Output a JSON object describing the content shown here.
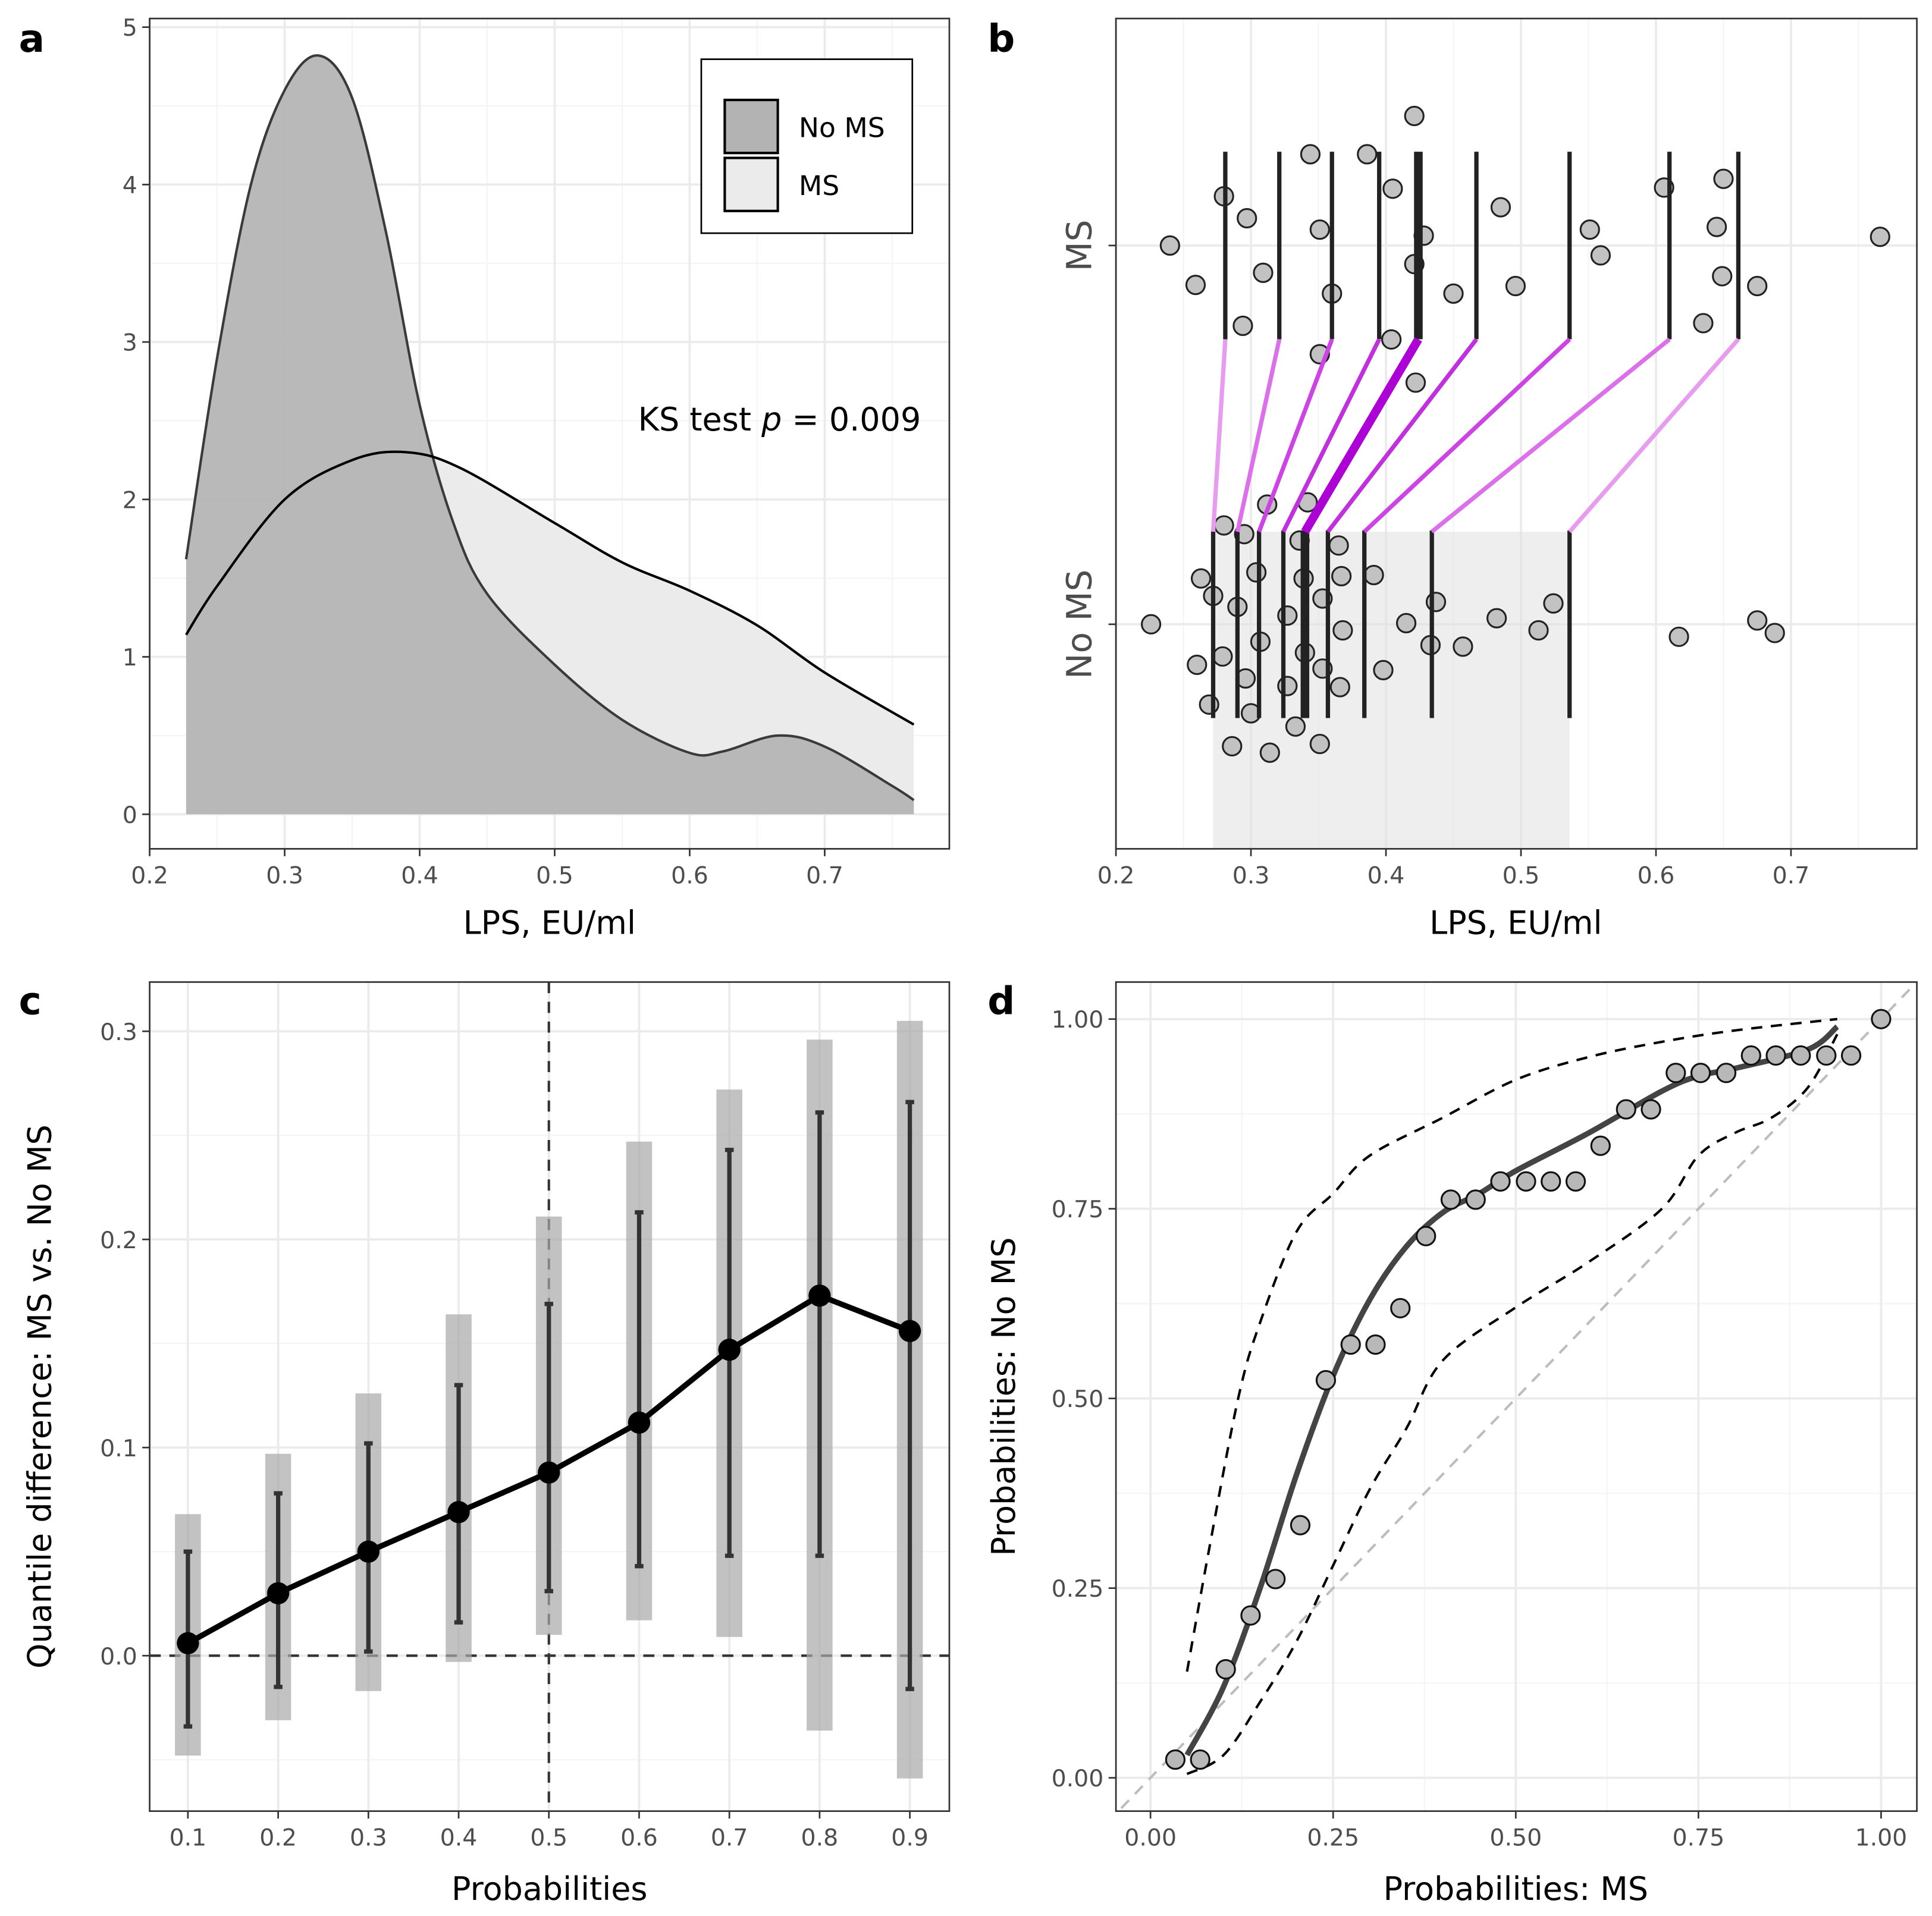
{
  "chart_data": [
    {
      "panel": "a",
      "type": "area",
      "letter": "a",
      "xlabel": "LPS, EU/ml",
      "ylabel": "",
      "xlim": [
        0.2,
        0.792
      ],
      "ylim": [
        -0.22,
        5.05
      ],
      "xticks": [
        "0.2",
        "0.3",
        "0.4",
        "0.5",
        "0.6",
        "0.7"
      ],
      "yticks": [
        "0",
        "1",
        "2",
        "3",
        "4",
        "5"
      ],
      "legend": {
        "placement": "top-right",
        "entries": [
          "No MS",
          "MS"
        ]
      },
      "annotation": {
        "prefix": "KS test ",
        "p": "p",
        "value": " = 0.009"
      },
      "series": [
        {
          "name": "MS",
          "fill": "#ebebeb",
          "line": "#000000",
          "x": [
            0.227,
            0.25,
            0.3,
            0.35,
            0.39,
            0.43,
            0.5,
            0.55,
            0.6,
            0.65,
            0.7,
            0.766
          ],
          "y": [
            1.14,
            1.45,
            2.0,
            2.25,
            2.3,
            2.2,
            1.85,
            1.6,
            1.42,
            1.2,
            0.9,
            0.57
          ]
        },
        {
          "name": "No MS",
          "fill": "#b3b3b3",
          "line": "#3a3a3a",
          "x": [
            0.227,
            0.25,
            0.275,
            0.3,
            0.325,
            0.35,
            0.375,
            0.4,
            0.425,
            0.45,
            0.5,
            0.55,
            0.6,
            0.625,
            0.665,
            0.7,
            0.75,
            0.766
          ],
          "y": [
            1.62,
            2.9,
            4.0,
            4.6,
            4.82,
            4.55,
            3.7,
            2.6,
            1.85,
            1.4,
            0.95,
            0.6,
            0.39,
            0.4,
            0.5,
            0.43,
            0.18,
            0.09
          ]
        }
      ]
    },
    {
      "panel": "b",
      "type": "scatter",
      "letter": "b",
      "xlabel": "LPS, EU/ml",
      "categories": [
        "MS",
        "No MS"
      ],
      "xlim": [
        0.2,
        0.793
      ],
      "xticks": [
        "0.2",
        "0.3",
        "0.4",
        "0.5",
        "0.6",
        "0.7"
      ],
      "deciles": {
        "MS": [
          0.281,
          0.321,
          0.36,
          0.395,
          0.424,
          0.467,
          0.536,
          0.61,
          0.661
        ],
        "No MS": [
          0.272,
          0.29,
          0.306,
          0.324,
          0.34,
          0.357,
          0.384,
          0.434,
          0.536
        ]
      },
      "decile_colors": [
        "#e89cf0",
        "#dc70ea",
        "#cc44e4",
        "#c030dc",
        "#ad00d4",
        "#c030dc",
        "#cc44e4",
        "#dc70ea",
        "#e89cf0"
      ],
      "points": {
        "MS": [
          [
            0.24,
            0
          ],
          [
            0.259,
            -0.104
          ],
          [
            0.28,
            0.13
          ],
          [
            0.294,
            -0.212
          ],
          [
            0.297,
            0.072
          ],
          [
            0.309,
            -0.072
          ],
          [
            0.344,
            0.241
          ],
          [
            0.351,
            0.042
          ],
          [
            0.351,
            -0.287
          ],
          [
            0.36,
            -0.127
          ],
          [
            0.386,
            0.241
          ],
          [
            0.404,
            -0.248
          ],
          [
            0.405,
            0.15
          ],
          [
            0.421,
            0.342
          ],
          [
            0.421,
            -0.049
          ],
          [
            0.422,
            -0.362
          ],
          [
            0.428,
            0.026
          ],
          [
            0.45,
            -0.127
          ],
          [
            0.485,
            0.101
          ],
          [
            0.496,
            -0.107
          ],
          [
            0.551,
            0.042
          ],
          [
            0.559,
            -0.026
          ],
          [
            0.606,
            0.153
          ],
          [
            0.635,
            -0.205
          ],
          [
            0.645,
            0.049
          ],
          [
            0.649,
            -0.081
          ],
          [
            0.65,
            0.176
          ],
          [
            0.675,
            -0.107
          ],
          [
            0.766,
            0.023
          ]
        ],
        "No MS": [
          [
            0.226,
            0
          ],
          [
            0.263,
            0.121
          ],
          [
            0.26,
            -0.107
          ],
          [
            0.272,
            0.075
          ],
          [
            0.269,
            -0.212
          ],
          [
            0.279,
            -0.085
          ],
          [
            0.28,
            0.261
          ],
          [
            0.286,
            -0.322
          ],
          [
            0.29,
            0.046
          ],
          [
            0.295,
            0.238
          ],
          [
            0.296,
            -0.143
          ],
          [
            0.3,
            -0.235
          ],
          [
            0.304,
            0.137
          ],
          [
            0.307,
            -0.046
          ],
          [
            0.312,
            0.316
          ],
          [
            0.314,
            -0.339
          ],
          [
            0.327,
            0.023
          ],
          [
            0.327,
            -0.163
          ],
          [
            0.333,
            -0.27
          ],
          [
            0.336,
            0.221
          ],
          [
            0.339,
            0.121
          ],
          [
            0.342,
            0.322
          ],
          [
            0.34,
            -0.075
          ],
          [
            0.353,
            0.068
          ],
          [
            0.353,
            -0.117
          ],
          [
            0.351,
            -0.316
          ],
          [
            0.365,
            0.208
          ],
          [
            0.367,
            0.127
          ],
          [
            0.368,
            -0.016
          ],
          [
            0.366,
            -0.166
          ],
          [
            0.391,
            0.13
          ],
          [
            0.398,
            -0.121
          ],
          [
            0.415,
            0.003
          ],
          [
            0.433,
            -0.055
          ],
          [
            0.437,
            0.059
          ],
          [
            0.457,
            -0.059
          ],
          [
            0.482,
            0.016
          ],
          [
            0.513,
            -0.016
          ],
          [
            0.524,
            0.055
          ],
          [
            0.617,
            -0.033
          ],
          [
            0.675,
            0.01
          ],
          [
            0.688,
            -0.023
          ]
        ]
      }
    },
    {
      "panel": "c",
      "type": "line",
      "letter": "c",
      "xlabel": "Probabilities",
      "ylabel": "Quantile difference: MS vs. No MS",
      "ylim": [
        -0.075,
        0.325
      ],
      "xticks": [
        "0.1",
        "0.2",
        "0.3",
        "0.4",
        "0.5",
        "0.6",
        "0.7",
        "0.8",
        "0.9"
      ],
      "yticks": [
        "0.0",
        "0.1",
        "0.2",
        "0.3"
      ],
      "x": [
        0.1,
        0.2,
        0.3,
        0.4,
        0.5,
        0.6,
        0.7,
        0.8,
        0.9
      ],
      "values": [
        0.006,
        0.03,
        0.05,
        0.069,
        0.088,
        0.112,
        0.147,
        0.173,
        0.156
      ],
      "ci_inner": [
        [
          -0.034,
          0.05
        ],
        [
          -0.015,
          0.078
        ],
        [
          0.002,
          0.102
        ],
        [
          0.016,
          0.13
        ],
        [
          0.031,
          0.169
        ],
        [
          0.043,
          0.213
        ],
        [
          0.048,
          0.243
        ],
        [
          0.048,
          0.261
        ],
        [
          -0.016,
          0.266
        ]
      ],
      "ci_outer": [
        [
          -0.048,
          0.068
        ],
        [
          -0.031,
          0.097
        ],
        [
          -0.017,
          0.126
        ],
        [
          -0.003,
          0.164
        ],
        [
          0.01,
          0.211
        ],
        [
          0.017,
          0.247
        ],
        [
          0.009,
          0.272
        ],
        [
          -0.036,
          0.296
        ],
        [
          -0.059,
          0.305
        ]
      ],
      "ref_lines": {
        "x": 0.5,
        "y": 0
      }
    },
    {
      "panel": "d",
      "type": "scatter",
      "letter": "d",
      "xlabel": "Probabilities: MS",
      "ylabel": "Probabilities: No MS",
      "xlim": [
        -0.047,
        1.05
      ],
      "ylim": [
        -0.045,
        1.047
      ],
      "xticks": [
        "0.00",
        "0.25",
        "0.50",
        "0.75",
        "1.00"
      ],
      "yticks": [
        "0.00",
        "0.25",
        "0.50",
        "0.75",
        "1.00"
      ],
      "points": [
        [
          0.034,
          0.024
        ],
        [
          0.068,
          0.024
        ],
        [
          0.103,
          0.143
        ],
        [
          0.137,
          0.214
        ],
        [
          0.171,
          0.262
        ],
        [
          0.205,
          0.333
        ],
        [
          0.24,
          0.524
        ],
        [
          0.274,
          0.571
        ],
        [
          0.308,
          0.571
        ],
        [
          0.342,
          0.619
        ],
        [
          0.377,
          0.714
        ],
        [
          0.411,
          0.762
        ],
        [
          0.445,
          0.762
        ],
        [
          0.479,
          0.786
        ],
        [
          0.514,
          0.786
        ],
        [
          0.548,
          0.786
        ],
        [
          0.582,
          0.786
        ],
        [
          0.616,
          0.833
        ],
        [
          0.651,
          0.881
        ],
        [
          0.685,
          0.881
        ],
        [
          0.719,
          0.929
        ],
        [
          0.753,
          0.929
        ],
        [
          0.788,
          0.929
        ],
        [
          0.822,
          0.952
        ],
        [
          0.856,
          0.952
        ],
        [
          0.89,
          0.952
        ],
        [
          0.925,
          0.952
        ],
        [
          0.959,
          0.952
        ],
        [
          1.0,
          1.0
        ]
      ],
      "fit": [
        [
          0.05,
          0.03
        ],
        [
          0.1,
          0.12
        ],
        [
          0.15,
          0.25
        ],
        [
          0.2,
          0.4
        ],
        [
          0.25,
          0.53
        ],
        [
          0.3,
          0.63
        ],
        [
          0.35,
          0.7
        ],
        [
          0.4,
          0.745
        ],
        [
          0.45,
          0.77
        ],
        [
          0.5,
          0.8
        ],
        [
          0.6,
          0.85
        ],
        [
          0.7,
          0.905
        ],
        [
          0.75,
          0.925
        ],
        [
          0.8,
          0.935
        ],
        [
          0.9,
          0.96
        ],
        [
          0.94,
          0.99
        ]
      ],
      "band_upper": [
        [
          0.05,
          0.14
        ],
        [
          0.08,
          0.3
        ],
        [
          0.12,
          0.5
        ],
        [
          0.15,
          0.6
        ],
        [
          0.2,
          0.72
        ],
        [
          0.25,
          0.77
        ],
        [
          0.3,
          0.82
        ],
        [
          0.4,
          0.87
        ],
        [
          0.5,
          0.92
        ],
        [
          0.6,
          0.95
        ],
        [
          0.7,
          0.97
        ],
        [
          0.8,
          0.985
        ],
        [
          0.94,
          1.0
        ]
      ],
      "band_lower": [
        [
          0.05,
          0.005
        ],
        [
          0.1,
          0.03
        ],
        [
          0.15,
          0.1
        ],
        [
          0.2,
          0.18
        ],
        [
          0.25,
          0.28
        ],
        [
          0.3,
          0.38
        ],
        [
          0.35,
          0.46
        ],
        [
          0.4,
          0.55
        ],
        [
          0.5,
          0.62
        ],
        [
          0.6,
          0.68
        ],
        [
          0.7,
          0.75
        ],
        [
          0.75,
          0.82
        ],
        [
          0.8,
          0.85
        ],
        [
          0.85,
          0.87
        ],
        [
          0.9,
          0.91
        ],
        [
          0.94,
          0.98
        ]
      ],
      "diagonal": [
        [
          -0.04,
          -0.04
        ],
        [
          1.04,
          1.04
        ]
      ]
    }
  ]
}
